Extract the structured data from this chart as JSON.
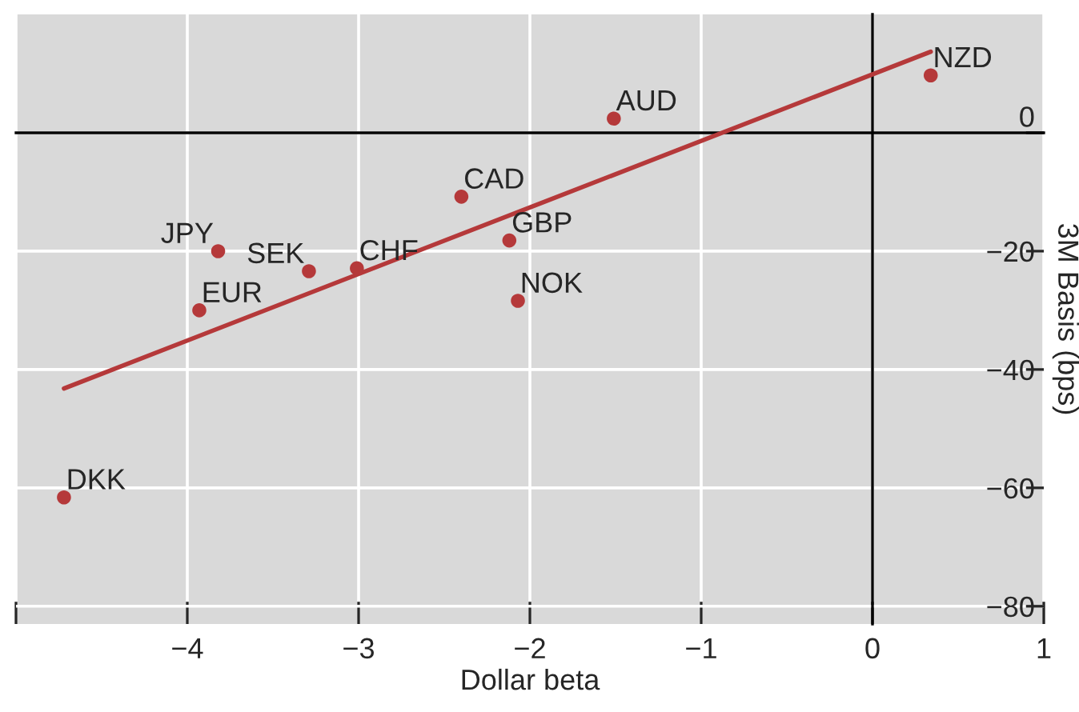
{
  "chart_data": {
    "type": "scatter",
    "xlabel": "Dollar beta",
    "ylabel": "3M Basis (bps)",
    "series": [
      {
        "marker": "circle",
        "color": "#b5393a",
        "x": [
          0.34,
          -1.51,
          -2.4,
          -2.12,
          -2.07,
          -3.01,
          -3.29,
          -3.82,
          -3.93,
          -4.72
        ],
        "values": [
          9.7,
          2.4,
          -10.8,
          -18.2,
          -28.4,
          -22.9,
          -23.4,
          -20,
          -30,
          -61.6
        ]
      },
      {
        "type": "line",
        "marker": "none",
        "color": "#b5393a",
        "x": [
          -4.72,
          0.34
        ],
        "values": [
          -43.2,
          13.7
        ]
      }
    ],
    "annotations": [
      {
        "text": "NZD",
        "x": 0.34,
        "y": 9.7
      },
      {
        "text": "AUD",
        "x": -1.51,
        "y": 2.4
      },
      {
        "text": "CAD",
        "x": -2.4,
        "y": -10.8
      },
      {
        "text": "GBP",
        "x": -2.12,
        "y": -18.2
      },
      {
        "text": "NOK",
        "x": -2.07,
        "y": -28.4
      },
      {
        "text": "CHF",
        "x": -3.01,
        "y": -22.9
      },
      {
        "text": "SEK",
        "x": -3.29,
        "y": -23.4
      },
      {
        "text": "JPY",
        "x": -3.82,
        "y": -20
      },
      {
        "text": "EUR",
        "x": -3.93,
        "y": -30
      },
      {
        "text": "DKK",
        "x": -4.72,
        "y": -61.6
      }
    ],
    "xlim": [
      -5,
      1
    ],
    "ylim": [
      -83,
      20
    ],
    "xticks": [
      {
        "value": -5,
        "label": null
      },
      {
        "value": -4,
        "label": "−4"
      },
      {
        "value": -3,
        "label": "−3"
      },
      {
        "value": -2,
        "label": "−2"
      },
      {
        "value": -1,
        "label": "−1"
      },
      0,
      1
    ],
    "yticks": [
      {
        "value": -80,
        "label": "−80"
      },
      {
        "value": -60,
        "label": "−60"
      },
      {
        "value": -40,
        "label": "−40"
      },
      {
        "value": -20,
        "label": "−20"
      },
      0
    ],
    "grid": true,
    "line_style": "solid"
  }
}
